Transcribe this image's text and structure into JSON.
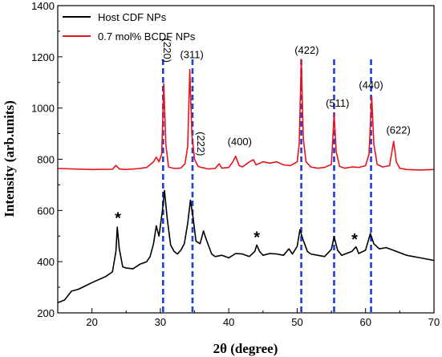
{
  "chart_data": {
    "type": "line",
    "xlabel": "2θ (degree)",
    "ylabel": "Intensity (arb.units)",
    "xlim": [
      15,
      70
    ],
    "ylim": [
      200,
      1400
    ],
    "xticks": [
      20,
      30,
      40,
      50,
      60,
      70
    ],
    "yticks": [
      200,
      400,
      600,
      800,
      1000,
      1200,
      1400
    ],
    "legend_position": "top-left",
    "series": [
      {
        "name": "Host CDF NPs",
        "color": "#000000",
        "points": [
          [
            15,
            240
          ],
          [
            16,
            250
          ],
          [
            17,
            285
          ],
          [
            18,
            292
          ],
          [
            19,
            305
          ],
          [
            20,
            318
          ],
          [
            21,
            330
          ],
          [
            22,
            342
          ],
          [
            23,
            360
          ],
          [
            23.5,
            440
          ],
          [
            23.7,
            535
          ],
          [
            24.0,
            450
          ],
          [
            24.5,
            380
          ],
          [
            25,
            375
          ],
          [
            26,
            372
          ],
          [
            27,
            390
          ],
          [
            28,
            400
          ],
          [
            28.5,
            420
          ],
          [
            29,
            470
          ],
          [
            29.4,
            540
          ],
          [
            29.8,
            500
          ],
          [
            30.3,
            600
          ],
          [
            30.6,
            678
          ],
          [
            31.0,
            570
          ],
          [
            31.5,
            465
          ],
          [
            32,
            440
          ],
          [
            32.5,
            430
          ],
          [
            33,
            445
          ],
          [
            33.5,
            470
          ],
          [
            34.0,
            550
          ],
          [
            34.4,
            640
          ],
          [
            34.8,
            570
          ],
          [
            35.2,
            480
          ],
          [
            35.8,
            470
          ],
          [
            36.3,
            520
          ],
          [
            36.8,
            480
          ],
          [
            37.5,
            430
          ],
          [
            38,
            420
          ],
          [
            39,
            425
          ],
          [
            40,
            415
          ],
          [
            41,
            432
          ],
          [
            42,
            430
          ],
          [
            43,
            420
          ],
          [
            43.8,
            440
          ],
          [
            44.1,
            465
          ],
          [
            44.5,
            440
          ],
          [
            45,
            425
          ],
          [
            46,
            432
          ],
          [
            47,
            430
          ],
          [
            48,
            425
          ],
          [
            48.8,
            450
          ],
          [
            49.3,
            430
          ],
          [
            50,
            460
          ],
          [
            50.4,
            525
          ],
          [
            50.8,
            490
          ],
          [
            51.5,
            440
          ],
          [
            52,
            430
          ],
          [
            53,
            425
          ],
          [
            54,
            420
          ],
          [
            55,
            448
          ],
          [
            55.4,
            498
          ],
          [
            55.9,
            445
          ],
          [
            56.5,
            425
          ],
          [
            57,
            430
          ],
          [
            58,
            440
          ],
          [
            58.6,
            458
          ],
          [
            59,
            432
          ],
          [
            60,
            445
          ],
          [
            60.7,
            510
          ],
          [
            61.2,
            470
          ],
          [
            62,
            450
          ],
          [
            63,
            455
          ],
          [
            64,
            445
          ],
          [
            65,
            435
          ],
          [
            66,
            425
          ],
          [
            67,
            420
          ],
          [
            68,
            415
          ],
          [
            69,
            410
          ],
          [
            70,
            405
          ]
        ]
      },
      {
        "name": "0.7 mol% BCDF NPs",
        "color": "#e8141b",
        "points": [
          [
            15,
            764
          ],
          [
            20,
            760
          ],
          [
            23,
            761
          ],
          [
            23.5,
            776
          ],
          [
            24,
            762
          ],
          [
            25,
            760
          ],
          [
            27,
            764
          ],
          [
            28,
            768
          ],
          [
            29,
            790
          ],
          [
            29.4,
            808
          ],
          [
            29.8,
            790
          ],
          [
            30.2,
            820
          ],
          [
            30.5,
            1095
          ],
          [
            30.8,
            860
          ],
          [
            31.2,
            770
          ],
          [
            32,
            764
          ],
          [
            33,
            766
          ],
          [
            33.6,
            782
          ],
          [
            34.0,
            850
          ],
          [
            34.3,
            1150
          ],
          [
            34.6,
            900
          ],
          [
            35.0,
            800
          ],
          [
            35.5,
            772
          ],
          [
            36,
            768
          ],
          [
            37,
            762
          ],
          [
            38,
            764
          ],
          [
            38.6,
            782
          ],
          [
            39,
            765
          ],
          [
            40,
            768
          ],
          [
            40.6,
            790
          ],
          [
            41.0,
            812
          ],
          [
            41.5,
            776
          ],
          [
            42,
            770
          ],
          [
            43,
            790
          ],
          [
            43.6,
            798
          ],
          [
            44,
            778
          ],
          [
            45,
            790
          ],
          [
            46,
            785
          ],
          [
            47,
            790
          ],
          [
            48,
            778
          ],
          [
            49,
            775
          ],
          [
            50,
            790
          ],
          [
            50.3,
            860
          ],
          [
            50.6,
            1190
          ],
          [
            50.9,
            880
          ],
          [
            51.3,
            790
          ],
          [
            52,
            770
          ],
          [
            53,
            765
          ],
          [
            54,
            768
          ],
          [
            55,
            780
          ],
          [
            55.4,
            975
          ],
          [
            55.7,
            830
          ],
          [
            56.2,
            772
          ],
          [
            57,
            765
          ],
          [
            58,
            770
          ],
          [
            59,
            768
          ],
          [
            60,
            775
          ],
          [
            60.5,
            820
          ],
          [
            60.9,
            1045
          ],
          [
            61.2,
            860
          ],
          [
            61.7,
            780
          ],
          [
            62.5,
            770
          ],
          [
            63.5,
            775
          ],
          [
            64.1,
            870
          ],
          [
            64.5,
            790
          ],
          [
            65,
            765
          ],
          [
            66,
            760
          ],
          [
            68,
            758
          ],
          [
            70,
            760
          ]
        ]
      }
    ],
    "reference_lines_x": [
      30.4,
      34.7,
      50.6,
      55.4,
      60.8
    ],
    "peak_labels": [
      {
        "text": "(220)",
        "x": 30.5,
        "y": 1225,
        "rotated": true
      },
      {
        "text": "(311)",
        "x": 34.6,
        "y": 1195,
        "rotated": false
      },
      {
        "text": "(222)",
        "x": 35.4,
        "y": 860,
        "rotated": true
      },
      {
        "text": "(400)",
        "x": 41.6,
        "y": 855,
        "rotated": false
      },
      {
        "text": "(422)",
        "x": 51.4,
        "y": 1212,
        "rotated": false
      },
      {
        "text": "(511)",
        "x": 55.9,
        "y": 1005,
        "rotated": false
      },
      {
        "text": "(440)",
        "x": 60.8,
        "y": 1075,
        "rotated": false
      },
      {
        "text": "(622)",
        "x": 64.8,
        "y": 900,
        "rotated": false
      }
    ],
    "star_markers": [
      {
        "text": "*",
        "x": 23.8,
        "y": 575
      },
      {
        "text": "*",
        "x": 44.1,
        "y": 500
      },
      {
        "text": "*",
        "x": 58.4,
        "y": 492
      }
    ]
  }
}
